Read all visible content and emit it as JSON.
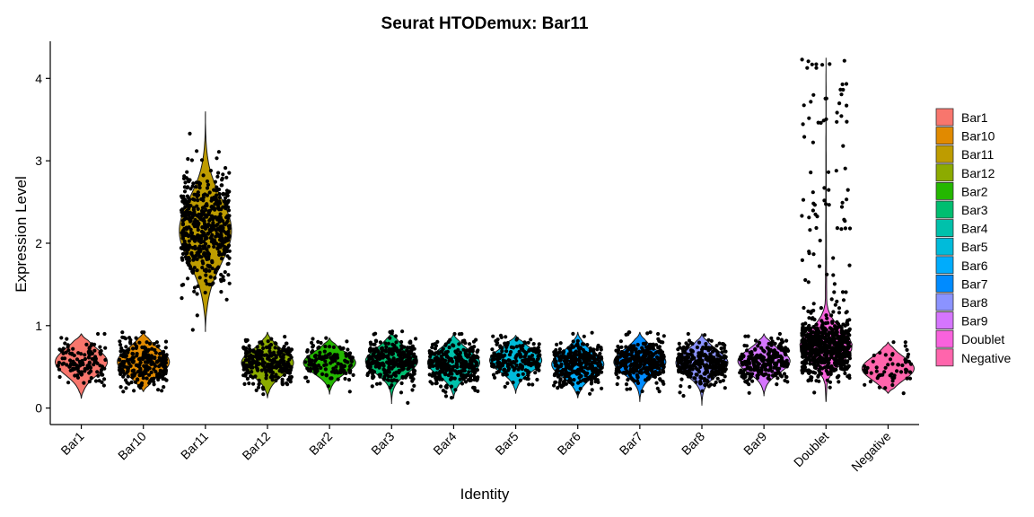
{
  "chart_data": {
    "type": "violin",
    "title": "Seurat HTODemux: Bar11",
    "xlabel": "Identity",
    "ylabel": "Expression Level",
    "ylim": [
      -0.2,
      4.45
    ],
    "yticks": [
      0,
      1,
      2,
      3,
      4
    ],
    "categories": [
      "Bar1",
      "Bar10",
      "Bar11",
      "Bar12",
      "Bar2",
      "Bar3",
      "Bar4",
      "Bar5",
      "Bar6",
      "Bar7",
      "Bar8",
      "Bar9",
      "Doublet",
      "Negative"
    ],
    "colors": [
      "#F8766D",
      "#E18A00",
      "#BE9C00",
      "#8CAB00",
      "#24B700",
      "#00BE70",
      "#00C1AB",
      "#00BBDA",
      "#00ACFC",
      "#008BFF",
      "#8B93FF",
      "#D575FE",
      "#F962DD",
      "#FF65AC"
    ],
    "series": [
      {
        "name": "Bar1",
        "min": 0.12,
        "max": 0.9,
        "center": 0.56,
        "spread": 0.16,
        "n": 130
      },
      {
        "name": "Bar10",
        "min": 0.2,
        "max": 0.92,
        "center": 0.56,
        "spread": 0.16,
        "n": 260
      },
      {
        "name": "Bar11",
        "min": 0.93,
        "max": 3.6,
        "center": 2.15,
        "spread": 0.4,
        "n": 520
      },
      {
        "name": "Bar12",
        "min": 0.12,
        "max": 0.92,
        "center": 0.55,
        "spread": 0.15,
        "n": 280
      },
      {
        "name": "Bar2",
        "min": 0.17,
        "max": 0.85,
        "center": 0.55,
        "spread": 0.13,
        "n": 140
      },
      {
        "name": "Bar3",
        "min": 0.05,
        "max": 0.93,
        "center": 0.57,
        "spread": 0.15,
        "n": 300
      },
      {
        "name": "Bar4",
        "min": 0.12,
        "max": 0.9,
        "center": 0.55,
        "spread": 0.15,
        "n": 300
      },
      {
        "name": "Bar5",
        "min": 0.18,
        "max": 0.88,
        "center": 0.58,
        "spread": 0.14,
        "n": 200
      },
      {
        "name": "Bar6",
        "min": 0.12,
        "max": 0.92,
        "center": 0.53,
        "spread": 0.15,
        "n": 320
      },
      {
        "name": "Bar7",
        "min": 0.08,
        "max": 0.92,
        "center": 0.56,
        "spread": 0.15,
        "n": 320
      },
      {
        "name": "Bar8",
        "min": 0.03,
        "max": 0.9,
        "center": 0.55,
        "spread": 0.15,
        "n": 300
      },
      {
        "name": "Bar9",
        "min": 0.15,
        "max": 0.9,
        "center": 0.57,
        "spread": 0.14,
        "n": 240
      },
      {
        "name": "Doublet",
        "min": 0.08,
        "max": 4.25,
        "center": 0.75,
        "spread": 0.2,
        "n": 700,
        "tail": true
      },
      {
        "name": "Negative",
        "min": 0.18,
        "max": 0.8,
        "center": 0.48,
        "spread": 0.14,
        "n": 60
      }
    ],
    "legend": {
      "position": "right",
      "entries": [
        "Bar1",
        "Bar10",
        "Bar11",
        "Bar12",
        "Bar2",
        "Bar3",
        "Bar4",
        "Bar5",
        "Bar6",
        "Bar7",
        "Bar8",
        "Bar9",
        "Doublet",
        "Negative"
      ]
    },
    "grid": false,
    "points": true
  }
}
